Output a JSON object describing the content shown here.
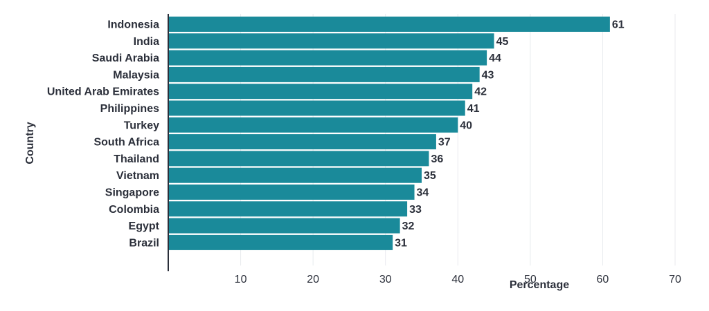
{
  "chart_data": {
    "type": "bar",
    "orientation": "horizontal",
    "categories": [
      "Indonesia",
      "India",
      "Saudi Arabia",
      "Malaysia",
      "United Arab Emirates",
      "Philippines",
      "Turkey",
      "South Africa",
      "Thailand",
      "Vietnam",
      "Singapore",
      "Colombia",
      "Egypt",
      "Brazil"
    ],
    "values": [
      61,
      45,
      44,
      43,
      42,
      41,
      40,
      37,
      36,
      35,
      34,
      33,
      32,
      31
    ],
    "xlabel": "Percentage",
    "ylabel": "Country",
    "xlim": [
      0,
      70
    ],
    "xticks": [
      10,
      20,
      30,
      40,
      50,
      60,
      70
    ],
    "grid": true,
    "bar_color": "#1a8a9a"
  }
}
